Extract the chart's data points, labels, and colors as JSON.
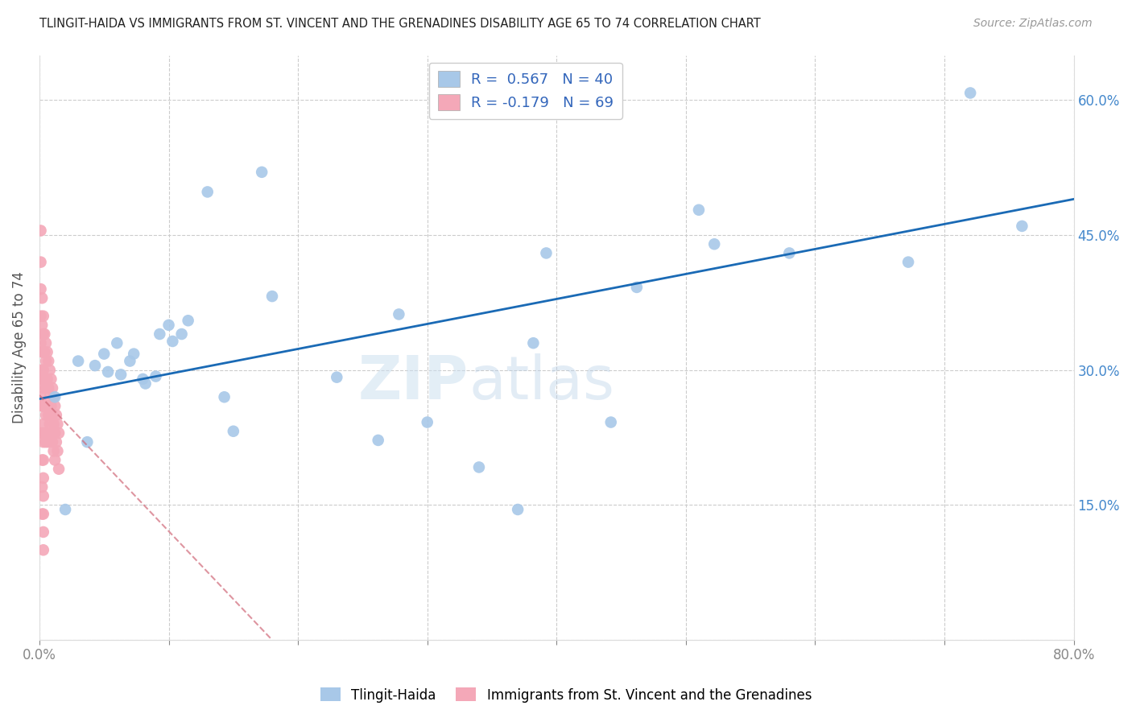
{
  "title": "TLINGIT-HAIDA VS IMMIGRANTS FROM ST. VINCENT AND THE GRENADINES DISABILITY AGE 65 TO 74 CORRELATION CHART",
  "source": "Source: ZipAtlas.com",
  "ylabel": "Disability Age 65 to 74",
  "xlim": [
    0,
    0.8
  ],
  "ylim": [
    0,
    0.65
  ],
  "xticks": [
    0.0,
    0.1,
    0.2,
    0.3,
    0.4,
    0.5,
    0.6,
    0.7,
    0.8
  ],
  "xticklabels": [
    "0.0%",
    "",
    "",
    "",
    "",
    "",
    "",
    "",
    "80.0%"
  ],
  "yticks": [
    0.0,
    0.15,
    0.3,
    0.45,
    0.6
  ],
  "right_yticklabels": [
    "",
    "15.0%",
    "30.0%",
    "45.0%",
    "60.0%"
  ],
  "blue_R": 0.567,
  "blue_N": 40,
  "pink_R": -0.179,
  "pink_N": 69,
  "blue_color": "#a8c8e8",
  "pink_color": "#f4a8b8",
  "blue_line_color": "#1a6ab5",
  "pink_line_color": "#d06878",
  "watermark_zip": "ZIP",
  "watermark_atlas": "atlas",
  "blue_scatter_x": [
    0.012,
    0.02,
    0.03,
    0.037,
    0.043,
    0.05,
    0.053,
    0.06,
    0.063,
    0.07,
    0.073,
    0.08,
    0.082,
    0.09,
    0.093,
    0.1,
    0.103,
    0.11,
    0.115,
    0.13,
    0.143,
    0.15,
    0.172,
    0.18,
    0.23,
    0.262,
    0.278,
    0.3,
    0.34,
    0.37,
    0.382,
    0.392,
    0.442,
    0.462,
    0.51,
    0.522,
    0.58,
    0.672,
    0.72,
    0.76
  ],
  "blue_scatter_y": [
    0.27,
    0.145,
    0.31,
    0.22,
    0.305,
    0.318,
    0.298,
    0.33,
    0.295,
    0.31,
    0.318,
    0.29,
    0.285,
    0.293,
    0.34,
    0.35,
    0.332,
    0.34,
    0.355,
    0.498,
    0.27,
    0.232,
    0.52,
    0.382,
    0.292,
    0.222,
    0.362,
    0.242,
    0.192,
    0.145,
    0.33,
    0.43,
    0.242,
    0.392,
    0.478,
    0.44,
    0.43,
    0.42,
    0.608,
    0.46
  ],
  "pink_scatter_x": [
    0.001,
    0.001,
    0.001,
    0.001,
    0.001,
    0.001,
    0.001,
    0.002,
    0.002,
    0.002,
    0.002,
    0.002,
    0.002,
    0.002,
    0.002,
    0.002,
    0.003,
    0.003,
    0.003,
    0.003,
    0.003,
    0.003,
    0.003,
    0.003,
    0.003,
    0.003,
    0.003,
    0.003,
    0.003,
    0.003,
    0.004,
    0.004,
    0.004,
    0.004,
    0.004,
    0.005,
    0.005,
    0.005,
    0.005,
    0.005,
    0.006,
    0.006,
    0.006,
    0.006,
    0.007,
    0.007,
    0.007,
    0.007,
    0.008,
    0.008,
    0.008,
    0.009,
    0.009,
    0.009,
    0.01,
    0.01,
    0.01,
    0.011,
    0.011,
    0.011,
    0.012,
    0.012,
    0.012,
    0.013,
    0.013,
    0.014,
    0.014,
    0.015,
    0.015
  ],
  "pink_scatter_y": [
    0.455,
    0.42,
    0.39,
    0.36,
    0.33,
    0.3,
    0.27,
    0.38,
    0.35,
    0.32,
    0.29,
    0.26,
    0.23,
    0.2,
    0.17,
    0.14,
    0.36,
    0.34,
    0.32,
    0.3,
    0.28,
    0.26,
    0.24,
    0.22,
    0.2,
    0.18,
    0.16,
    0.14,
    0.12,
    0.1,
    0.34,
    0.32,
    0.29,
    0.26,
    0.23,
    0.33,
    0.31,
    0.28,
    0.25,
    0.22,
    0.32,
    0.29,
    0.26,
    0.23,
    0.31,
    0.28,
    0.25,
    0.22,
    0.3,
    0.27,
    0.24,
    0.29,
    0.26,
    0.23,
    0.28,
    0.25,
    0.22,
    0.27,
    0.24,
    0.21,
    0.26,
    0.23,
    0.2,
    0.25,
    0.22,
    0.24,
    0.21,
    0.23,
    0.19
  ],
  "blue_line_x0": 0.0,
  "blue_line_x1": 0.8,
  "blue_line_y0": 0.268,
  "blue_line_y1": 0.49,
  "pink_line_x0": 0.0,
  "pink_line_x1": 0.18,
  "pink_line_y0": 0.272,
  "pink_line_y1": 0.0
}
